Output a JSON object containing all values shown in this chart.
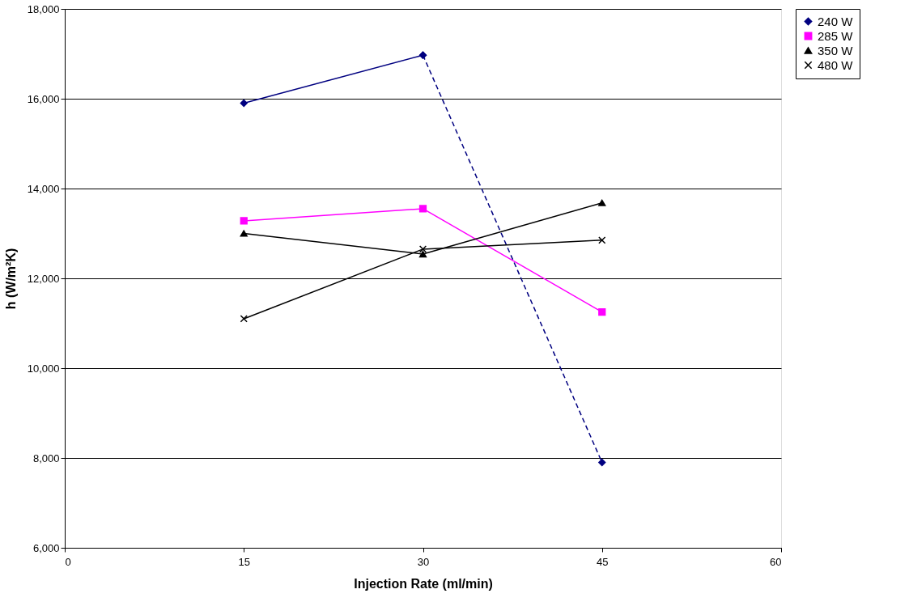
{
  "chart_data": {
    "type": "line",
    "xlabel": "Injection Rate (ml/min)",
    "ylabel": "h (W/m²K)",
    "xlim": [
      0,
      60
    ],
    "xticks": [
      0,
      15,
      30,
      45,
      60
    ],
    "ylim": [
      6000,
      18000
    ],
    "yticks": [
      {
        "value": 6000,
        "label": "6,000"
      },
      {
        "value": 8000,
        "label": "8,000"
      },
      {
        "value": 10000,
        "label": "10,000"
      },
      {
        "value": 12000,
        "label": "12,000"
      },
      {
        "value": 14000,
        "label": "14,000"
      },
      {
        "value": 16000,
        "label": "16,000"
      },
      {
        "value": 18000,
        "label": "18,000"
      }
    ],
    "x": [
      15,
      30,
      45
    ],
    "grid": "y",
    "legend": "right",
    "series": [
      {
        "name": "240 W",
        "color": "#000080",
        "marker": "diamond",
        "line_style": "solid",
        "x": [
          15,
          30
        ],
        "values": [
          15900,
          16970
        ]
      },
      {
        "color": "#000080",
        "marker": "diamond",
        "line_style": "dashed",
        "x": [
          30,
          45
        ],
        "values": [
          16970,
          7900
        ]
      },
      {
        "name": "285 W",
        "color": "#ff00ff",
        "marker": "square",
        "line_style": "solid",
        "values": [
          13280,
          13550,
          11250
        ]
      },
      {
        "name": "350 W",
        "color": "#000000",
        "marker": "triangle",
        "line_style": "solid",
        "values": [
          13000,
          12540,
          13680
        ]
      },
      {
        "name": "480 W",
        "color": "#000000",
        "marker": "cross",
        "line_style": "solid",
        "values": [
          11100,
          12650,
          12850
        ]
      }
    ]
  }
}
